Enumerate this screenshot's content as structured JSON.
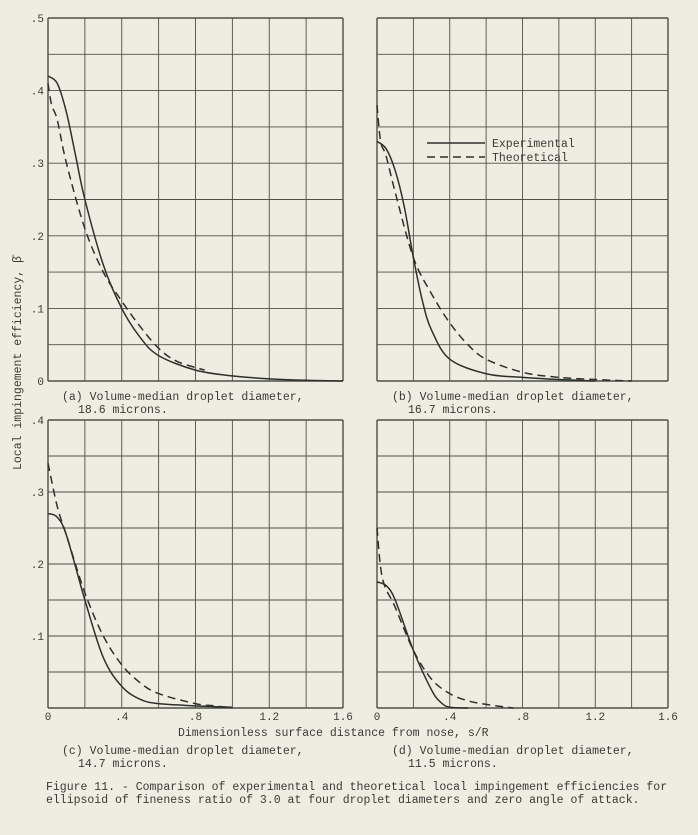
{
  "chart_data": [
    {
      "type": "line",
      "panel": "a",
      "caption_line1": "(a) Volume-median droplet diameter,",
      "caption_line2": "18.6 microns.",
      "xlim": [
        0,
        1.6
      ],
      "ylim": [
        0,
        0.5
      ],
      "xticks": [],
      "yticks": [
        ".5",
        ".4",
        ".3",
        ".2",
        ".1",
        "0"
      ],
      "ytick_values": [
        0.5,
        0.4,
        0.3,
        0.2,
        0.1,
        0
      ],
      "grid": true,
      "series": [
        {
          "name": "Experimental",
          "style": "solid",
          "x": [
            0,
            0.05,
            0.1,
            0.15,
            0.2,
            0.3,
            0.4,
            0.5,
            0.6,
            0.8,
            1.0,
            1.2,
            1.4,
            1.6
          ],
          "y": [
            0.42,
            0.41,
            0.37,
            0.31,
            0.25,
            0.16,
            0.1,
            0.06,
            0.035,
            0.015,
            0.007,
            0.003,
            0.001,
            0
          ]
        },
        {
          "name": "Theoretical",
          "style": "dashed",
          "x": [
            0,
            0.02,
            0.05,
            0.1,
            0.2,
            0.3,
            0.4,
            0.5,
            0.6,
            0.7,
            0.85
          ],
          "y": [
            0.41,
            0.38,
            0.36,
            0.3,
            0.21,
            0.15,
            0.11,
            0.075,
            0.045,
            0.027,
            0.015
          ]
        }
      ]
    },
    {
      "type": "line",
      "panel": "b",
      "caption_line1": "(b) Volume-median droplet diameter,",
      "caption_line2": "16.7 microns.",
      "xlim": [
        0,
        1.6
      ],
      "ylim": [
        0,
        0.5
      ],
      "xticks": [],
      "yticks": [],
      "ytick_values": [],
      "grid": true,
      "legend": "top-center",
      "series": [
        {
          "name": "Experimental",
          "style": "solid",
          "x": [
            0,
            0.05,
            0.1,
            0.15,
            0.2,
            0.25,
            0.3,
            0.4,
            0.6,
            0.8,
            1.0,
            1.2
          ],
          "y": [
            0.33,
            0.32,
            0.29,
            0.24,
            0.17,
            0.11,
            0.07,
            0.03,
            0.01,
            0.005,
            0.002,
            0
          ]
        },
        {
          "name": "Theoretical",
          "style": "dashed",
          "x": [
            0,
            0.02,
            0.05,
            0.1,
            0.2,
            0.3,
            0.4,
            0.5,
            0.6,
            0.8,
            1.0,
            1.2,
            1.4
          ],
          "y": [
            0.38,
            0.33,
            0.31,
            0.26,
            0.17,
            0.12,
            0.08,
            0.05,
            0.03,
            0.012,
            0.005,
            0.002,
            0
          ]
        }
      ]
    },
    {
      "type": "line",
      "panel": "c",
      "caption_line1": "(c) Volume-median droplet diameter,",
      "caption_line2": "14.7 microns.",
      "xlim": [
        0,
        1.6
      ],
      "ylim": [
        0,
        0.4
      ],
      "xticks": [
        "0",
        ".4",
        ".8",
        "1.2",
        "1.6"
      ],
      "xtick_values": [
        0,
        0.4,
        0.8,
        1.2,
        1.6
      ],
      "yticks": [
        ".4",
        ".3",
        ".2",
        ".1"
      ],
      "ytick_values": [
        0.4,
        0.3,
        0.2,
        0.1
      ],
      "grid": true,
      "series": [
        {
          "name": "Experimental",
          "style": "solid",
          "x": [
            0,
            0.05,
            0.1,
            0.2,
            0.3,
            0.4,
            0.5,
            0.6,
            0.8,
            1.0
          ],
          "y": [
            0.27,
            0.265,
            0.24,
            0.15,
            0.07,
            0.03,
            0.012,
            0.006,
            0.003,
            0.001
          ]
        },
        {
          "name": "Theoretical",
          "style": "dashed",
          "x": [
            0,
            0.05,
            0.1,
            0.2,
            0.3,
            0.4,
            0.5,
            0.6,
            0.8,
            0.9,
            1.0
          ],
          "y": [
            0.34,
            0.28,
            0.24,
            0.16,
            0.1,
            0.06,
            0.035,
            0.02,
            0.006,
            0.003,
            0
          ]
        }
      ]
    },
    {
      "type": "line",
      "panel": "d",
      "caption_line1": "(d) Volume-median droplet diameter,",
      "caption_line2": "11.5 microns.",
      "xlim": [
        0,
        1.6
      ],
      "ylim": [
        0,
        0.4
      ],
      "xticks": [
        "0",
        ".4",
        ".8",
        "1.2",
        "1.6"
      ],
      "xtick_values": [
        0,
        0.4,
        0.8,
        1.2,
        1.6
      ],
      "yticks": [],
      "ytick_values": [],
      "grid": true,
      "series": [
        {
          "name": "Experimental",
          "style": "solid",
          "x": [
            0,
            0.05,
            0.1,
            0.2,
            0.3,
            0.35,
            0.4,
            0.5
          ],
          "y": [
            0.175,
            0.17,
            0.15,
            0.08,
            0.025,
            0.008,
            0.001,
            0
          ]
        },
        {
          "name": "Theoretical",
          "style": "dashed",
          "x": [
            0,
            0.03,
            0.1,
            0.2,
            0.3,
            0.4,
            0.5,
            0.6,
            0.75
          ],
          "y": [
            0.25,
            0.18,
            0.14,
            0.08,
            0.04,
            0.02,
            0.01,
            0.005,
            0
          ]
        }
      ]
    }
  ],
  "ylabel": "Local impingement efficiency, β̄",
  "xlabel": "Dimensionless surface distance from nose, s/R",
  "legend": {
    "experimental": "Experimental",
    "theoretical": "Theoretical"
  },
  "figure_caption": "Figure 11. - Comparison of experimental and theoretical local impingement efficiencies for ellipsoid of fineness ratio of 3.0 at four droplet diameters and zero angle of attack."
}
